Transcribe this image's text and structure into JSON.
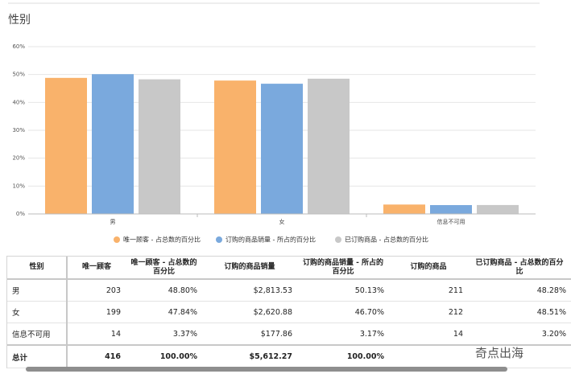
{
  "chart_data": {
    "type": "bar",
    "title": "性别",
    "categories": [
      "男",
      "女",
      "信息不可用"
    ],
    "series": [
      {
        "name": "唯一顾客 - 占总数的百分比",
        "color": "#f9b26b",
        "values": [
          48.8,
          47.84,
          3.37
        ]
      },
      {
        "name": "订购的商品销量 - 所占的百分比",
        "color": "#7aa9dd",
        "values": [
          50.13,
          46.7,
          3.17
        ]
      },
      {
        "name": "已订购商品 - 占总数的百分比",
        "color": "#c8c8c8",
        "values": [
          48.28,
          48.51,
          3.2
        ]
      }
    ],
    "ylim": [
      0,
      60
    ],
    "yticks": [
      {
        "value": 0,
        "label": "0%"
      },
      {
        "value": 10,
        "label": "10%"
      },
      {
        "value": 20,
        "label": "20%"
      },
      {
        "value": 30,
        "label": "30%"
      },
      {
        "value": 40,
        "label": "40%"
      },
      {
        "value": 50,
        "label": "50%"
      },
      {
        "value": 60,
        "label": "60%"
      }
    ],
    "grid": true
  },
  "table": {
    "header": [
      "性别",
      "唯一顾客",
      "唯一顾客 - 占总数的百分比",
      "订购的商品销量",
      "订购的商品销量 - 所占的百分比",
      "订购的商品",
      "已订购商品 - 占总数的百分比"
    ],
    "rows": [
      [
        "男",
        "203",
        "48.80%",
        "$2,813.53",
        "50.13%",
        "211",
        "48.28%"
      ],
      [
        "女",
        "199",
        "47.84%",
        "$2,620.88",
        "46.70%",
        "212",
        "48.51%"
      ],
      [
        "信息不可用",
        "14",
        "3.37%",
        "$177.86",
        "3.17%",
        "14",
        "3.20%"
      ]
    ],
    "total": [
      "总计",
      "416",
      "100.00%",
      "$5,612.27",
      "100.00%"
    ]
  },
  "watermark": "奇点出海"
}
